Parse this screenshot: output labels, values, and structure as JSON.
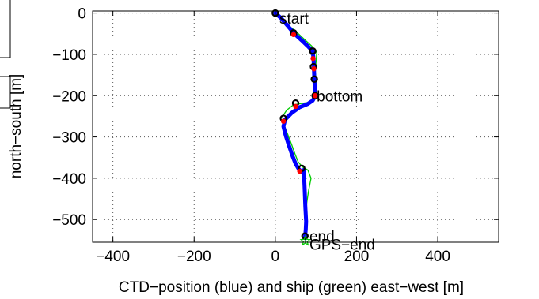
{
  "chart_data": {
    "type": "line",
    "title": "",
    "xlabel": "CTD−position (blue) and ship (green) east−west [m]",
    "ylabel": "north−south [m]",
    "xlim": [
      -450,
      550
    ],
    "ylim": [
      -555,
      5
    ],
    "xticks": [
      -400,
      -200,
      0,
      200,
      400
    ],
    "xtick_labels": [
      "−400",
      "−200",
      "0",
      "200",
      "400"
    ],
    "yticks": [
      0,
      -100,
      -200,
      -300,
      -400,
      -500
    ],
    "ytick_labels": [
      "0",
      "−100",
      "−200",
      "−300",
      "−400",
      "−500"
    ],
    "grid": true,
    "series": [
      {
        "color": "#0000ff",
        "x": [
          0,
          14,
          30,
          45,
          65,
          82,
          92,
          94,
          95,
          96,
          98,
          96,
          92,
          80,
          60,
          40,
          24,
          20,
          26,
          34,
          42,
          50,
          58,
          65,
          70,
          72,
          74,
          76,
          75,
          73
        ],
        "y": [
          0,
          -12,
          -30,
          -48,
          -66,
          -82,
          -92,
          -110,
          -130,
          -160,
          -190,
          -205,
          -212,
          -220,
          -228,
          -242,
          -258,
          -275,
          -298,
          -322,
          -345,
          -365,
          -378,
          -385,
          -380,
          -420,
          -470,
          -505,
          -525,
          -545
        ]
      },
      {
        "color": "#00cc00",
        "x": [
          0,
          12,
          30,
          48,
          70,
          90,
          102,
          100,
          98,
          102,
          100,
          100,
          90,
          70,
          45,
          28,
          18,
          20,
          30,
          40,
          48,
          56,
          66,
          80,
          88,
          82,
          76,
          78,
          76,
          74
        ],
        "y": [
          0,
          -10,
          -28,
          -42,
          -62,
          -80,
          -95,
          -120,
          -140,
          -170,
          -195,
          -205,
          -215,
          -218,
          -222,
          -235,
          -250,
          -268,
          -292,
          -318,
          -340,
          -360,
          -372,
          -380,
          -400,
          -430,
          -470,
          -505,
          -525,
          -555
        ]
      }
    ],
    "markers_black_circle": {
      "x": [
        0,
        45,
        92,
        94,
        96,
        98,
        50,
        20,
        65,
        73
      ],
      "y": [
        0,
        -48,
        -92,
        -130,
        -160,
        -200,
        -218,
        -255,
        -376,
        -540
      ]
    },
    "markers_red_dot": {
      "x": [
        45,
        93,
        95,
        98,
        50,
        20,
        60
      ],
      "y": [
        -52,
        -110,
        -135,
        -200,
        -226,
        -262,
        -383
      ]
    },
    "end_star": {
      "x": 74,
      "y": -552,
      "color": "#00cc00"
    },
    "annotations": [
      {
        "text": "start",
        "x": 10,
        "y": -12
      },
      {
        "text": "bottom",
        "x": 102,
        "y": -200
      },
      {
        "text": "end",
        "x": 84,
        "y": -540
      },
      {
        "text": "GPS−end",
        "x": 84,
        "y": -560
      }
    ]
  }
}
